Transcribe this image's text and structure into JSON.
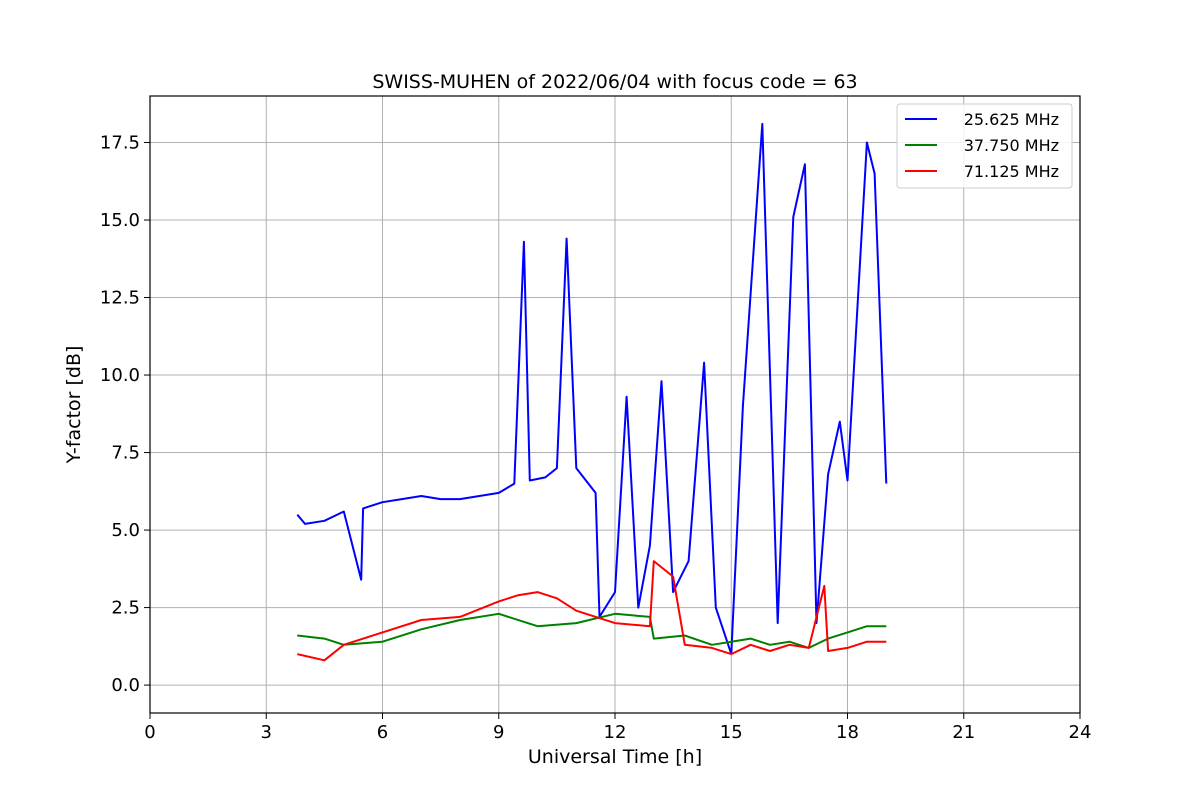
{
  "chart_data": {
    "type": "line",
    "title": "SWISS-MUHEN of 2022/06/04 with focus code = 63",
    "xlabel": "Universal Time [h]",
    "ylabel": "Y-factor [dB]",
    "xlim": [
      0,
      24
    ],
    "ylim": [
      -0.9,
      19.0
    ],
    "x_ticks": [
      0,
      3,
      6,
      9,
      12,
      15,
      18,
      21,
      24
    ],
    "y_ticks": [
      0.0,
      2.5,
      5.0,
      7.5,
      10.0,
      12.5,
      15.0,
      17.5
    ],
    "y_tick_labels": [
      "0.0",
      "2.5",
      "5.0",
      "7.5",
      "10.0",
      "12.5",
      "15.0",
      "17.5"
    ],
    "grid": true,
    "legend_position": "top-right",
    "series": [
      {
        "name": "25.625 MHz",
        "color": "#0000ff",
        "x": [
          3.8,
          4.0,
          4.5,
          5.0,
          5.45,
          5.5,
          6.0,
          6.5,
          7.0,
          7.5,
          8.0,
          8.5,
          9.0,
          9.4,
          9.65,
          9.8,
          10.2,
          10.5,
          10.75,
          11.0,
          11.5,
          11.6,
          12.0,
          12.3,
          12.6,
          12.9,
          13.2,
          13.5,
          13.9,
          14.3,
          14.6,
          15.0,
          15.3,
          15.8,
          16.2,
          16.6,
          16.9,
          17.2,
          17.5,
          17.8,
          18.0,
          18.5,
          18.7,
          19.0
        ],
        "values": [
          5.5,
          5.2,
          5.3,
          5.6,
          3.4,
          5.7,
          5.9,
          6.0,
          6.1,
          6.0,
          6.0,
          6.1,
          6.2,
          6.5,
          14.3,
          6.6,
          6.7,
          7.0,
          14.4,
          7.0,
          6.2,
          2.2,
          3.0,
          9.3,
          2.5,
          4.5,
          9.8,
          3.0,
          4.0,
          10.4,
          2.5,
          1.0,
          9.0,
          18.1,
          2.0,
          15.1,
          16.8,
          2.0,
          6.8,
          8.5,
          6.6,
          17.5,
          16.5,
          6.5
        ]
      },
      {
        "name": "37.750 MHz",
        "color": "#008000",
        "x": [
          3.8,
          4.5,
          5.0,
          6.0,
          7.0,
          8.0,
          9.0,
          10.0,
          11.0,
          12.0,
          12.9,
          13.0,
          13.8,
          14.5,
          15.0,
          15.5,
          16.0,
          16.5,
          17.0,
          17.5,
          18.0,
          18.5,
          19.0
        ],
        "values": [
          1.6,
          1.5,
          1.3,
          1.4,
          1.8,
          2.1,
          2.3,
          1.9,
          2.0,
          2.3,
          2.2,
          1.5,
          1.6,
          1.3,
          1.4,
          1.5,
          1.3,
          1.4,
          1.2,
          1.5,
          1.7,
          1.9,
          1.9
        ]
      },
      {
        "name": "71.125 MHz",
        "color": "#ff0000",
        "x": [
          3.8,
          4.5,
          5.0,
          6.0,
          7.0,
          8.0,
          9.0,
          9.5,
          10.0,
          10.5,
          11.0,
          12.0,
          12.9,
          13.0,
          13.5,
          13.8,
          14.5,
          15.0,
          15.5,
          16.0,
          16.5,
          17.0,
          17.4,
          17.5,
          18.0,
          18.5,
          19.0
        ],
        "values": [
          1.0,
          0.8,
          1.3,
          1.7,
          2.1,
          2.2,
          2.7,
          2.9,
          3.0,
          2.8,
          2.4,
          2.0,
          1.9,
          4.0,
          3.5,
          1.3,
          1.2,
          1.0,
          1.3,
          1.1,
          1.3,
          1.2,
          3.2,
          1.1,
          1.2,
          1.4,
          1.4
        ]
      }
    ]
  }
}
